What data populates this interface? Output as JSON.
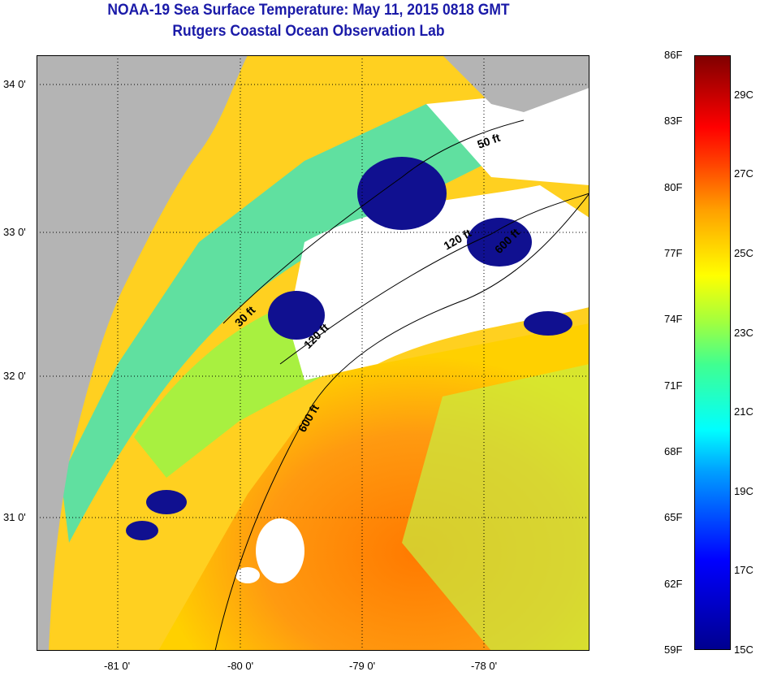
{
  "title": "NOAA-19 Sea Surface Temperature:  May 11, 2015 0818 GMT",
  "subtitle": "Rutgers Coastal Ocean Observation Lab",
  "map": {
    "lat_labels": [
      "34 0'",
      "33 0'",
      "32 0'",
      "31 0'"
    ],
    "lon_labels": [
      "-81 0'",
      "-80 0'",
      "-79 0'",
      "-78 0'"
    ],
    "contour_labels": [
      "50 ft",
      "120 ft",
      "600 ft",
      "30 ft",
      "120 ft",
      "600 ft"
    ],
    "colors": {
      "land": "#b4b4b4",
      "cloud": "#ffffff"
    }
  },
  "colorbar": {
    "fahrenheit_labels": [
      "86F",
      "83F",
      "80F",
      "77F",
      "74F",
      "71F",
      "68F",
      "65F",
      "62F",
      "59F"
    ],
    "celsius_labels": [
      "29C",
      "27C",
      "25C",
      "23C",
      "21C",
      "19C",
      "17C",
      "15C"
    ]
  }
}
